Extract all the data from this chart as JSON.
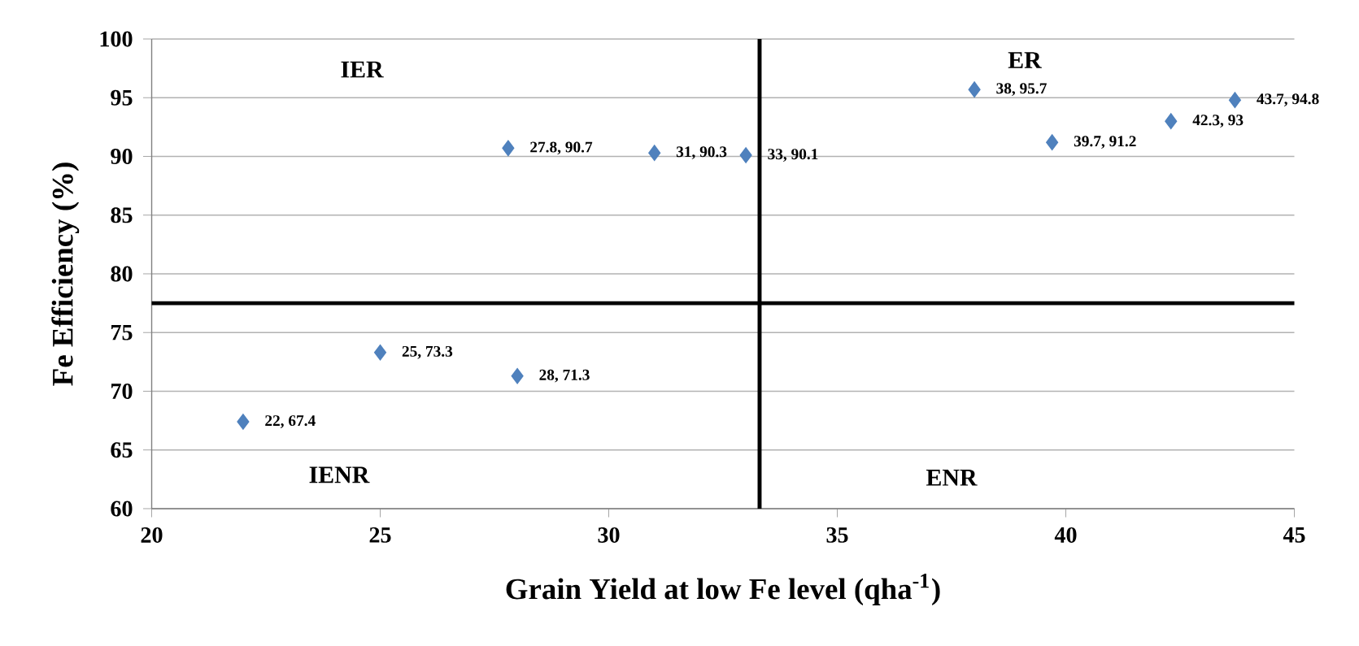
{
  "chart_data": {
    "type": "scatter",
    "xlabel": "Grain Yield at low Fe level (qha$^{-1}$)",
    "ylabel": "Fe Efficiency (%)",
    "x": [
      22,
      25,
      27.8,
      28,
      31,
      33,
      38,
      39.7,
      42.3,
      43.7
    ],
    "series": [
      {
        "color": "#4f81bd",
        "values": [
          67.4,
          73.3,
          90.7,
          71.3,
          90.3,
          90.1,
          95.7,
          91.2,
          93,
          94.8
        ],
        "value_labels": [
          "22, 67.4",
          "25, 73.3",
          "27.8, 90.7",
          "28, 71.3",
          "31, 90.3",
          "33, 90.1",
          "38, 95.7",
          "39.7, 91.2",
          "42.3, 93",
          "43.7, 94.8"
        ]
      }
    ],
    "marker": "diamond",
    "xlim": [
      20,
      45
    ],
    "xticks": [
      20,
      25,
      30,
      35,
      40,
      45
    ],
    "ylim": [
      60,
      100
    ],
    "yticks": [
      60,
      65,
      70,
      75,
      80,
      85,
      90,
      95,
      100
    ],
    "grid": "y",
    "ref_lines": [
      {
        "axis": "x",
        "value": 33.3,
        "color": "#000000"
      },
      {
        "axis": "y",
        "value": 77.5,
        "color": "#000000"
      }
    ],
    "annotations": [
      "IER",
      "ER",
      "IENR",
      "ENR"
    ]
  }
}
